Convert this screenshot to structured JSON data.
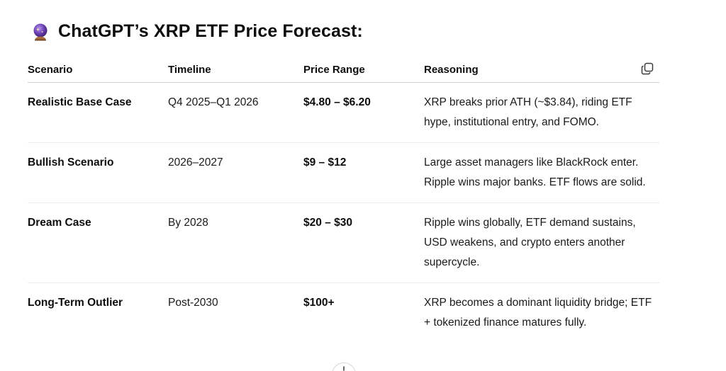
{
  "heading": {
    "icon": "crystal-ball-icon",
    "title": "ChatGPT’s XRP ETF Price Forecast:"
  },
  "table": {
    "headers": {
      "scenario": "Scenario",
      "timeline": "Timeline",
      "price_range": "Price Range",
      "reasoning": "Reasoning"
    },
    "rows": [
      {
        "scenario": "Realistic Base Case",
        "timeline": "Q4 2025–Q1 2026",
        "price_range": "$4.80 – $6.20",
        "reasoning": "XRP breaks prior ATH (~$3.84), riding ETF hype, institutional entry, and FOMO."
      },
      {
        "scenario": "Bullish Scenario",
        "timeline": "2026–2027",
        "price_range": "$9 – $12",
        "reasoning": "Large asset managers like BlackRock enter. Ripple wins major banks. ETF flows are solid."
      },
      {
        "scenario": "Dream Case",
        "timeline": "By 2028",
        "price_range": "$20 – $30",
        "reasoning": "Ripple wins globally, ETF demand sustains, USD weakens, and crypto enters another supercycle."
      },
      {
        "scenario": "Long-Term Outlier",
        "timeline": "Post-2030",
        "price_range": "$100+",
        "reasoning": "XRP becomes a dominant liquidity bridge; ETF + tokenized finance matures fully."
      }
    ]
  },
  "controls": {
    "copy_icon": "copy-icon",
    "scroll_icon": "scroll-down-icon"
  },
  "colors": {
    "text": "#0d0d0d",
    "header_rule": "#cfcfcf",
    "row_rule": "#ececec",
    "orb_purple": "#7c4dbb"
  }
}
